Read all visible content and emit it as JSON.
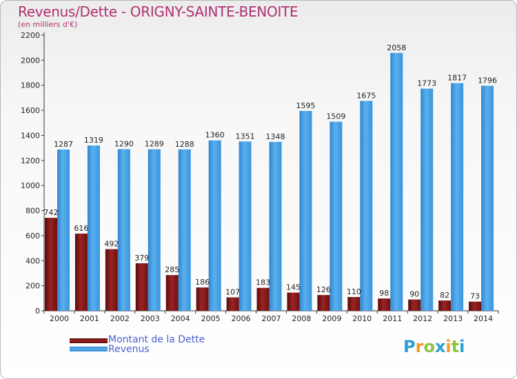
{
  "title": "Revenus/Dette - ORIGNY-SAINTE-BENOITE",
  "subtitle": "(en milliers d'€)",
  "colors": {
    "dette": "#8b1a1a",
    "revenus": "#3fa0e8",
    "title": "#b03070"
  },
  "logo": {
    "letters": [
      "P",
      "r",
      "o",
      "x",
      "i",
      "t",
      "i"
    ],
    "colors": [
      "#2a9fd6",
      "#f29a22",
      "#8bc43f",
      "#2a9fd6",
      "#f29a22",
      "#8bc43f",
      "#2a9fd6"
    ]
  },
  "chart_data": {
    "type": "bar",
    "categories": [
      "2000",
      "2001",
      "2002",
      "2003",
      "2004",
      "2005",
      "2006",
      "2007",
      "2008",
      "2009",
      "2010",
      "2011",
      "2012",
      "2013",
      "2014"
    ],
    "series": [
      {
        "name": "Montant de la Dette",
        "values": [
          742,
          616,
          492,
          379,
          285,
          186,
          107,
          183,
          145,
          126,
          110,
          98,
          90,
          82,
          73
        ]
      },
      {
        "name": "Revenus",
        "values": [
          1287,
          1319,
          1290,
          1289,
          1288,
          1360,
          1351,
          1348,
          1595,
          1509,
          1675,
          2058,
          1773,
          1817,
          1796
        ]
      }
    ],
    "yticks": [
      0,
      200,
      400,
      600,
      800,
      1000,
      1200,
      1400,
      1600,
      1800,
      2000,
      2200
    ],
    "ylim": [
      0,
      2200
    ],
    "grid": false,
    "legend": "bottom-left"
  }
}
